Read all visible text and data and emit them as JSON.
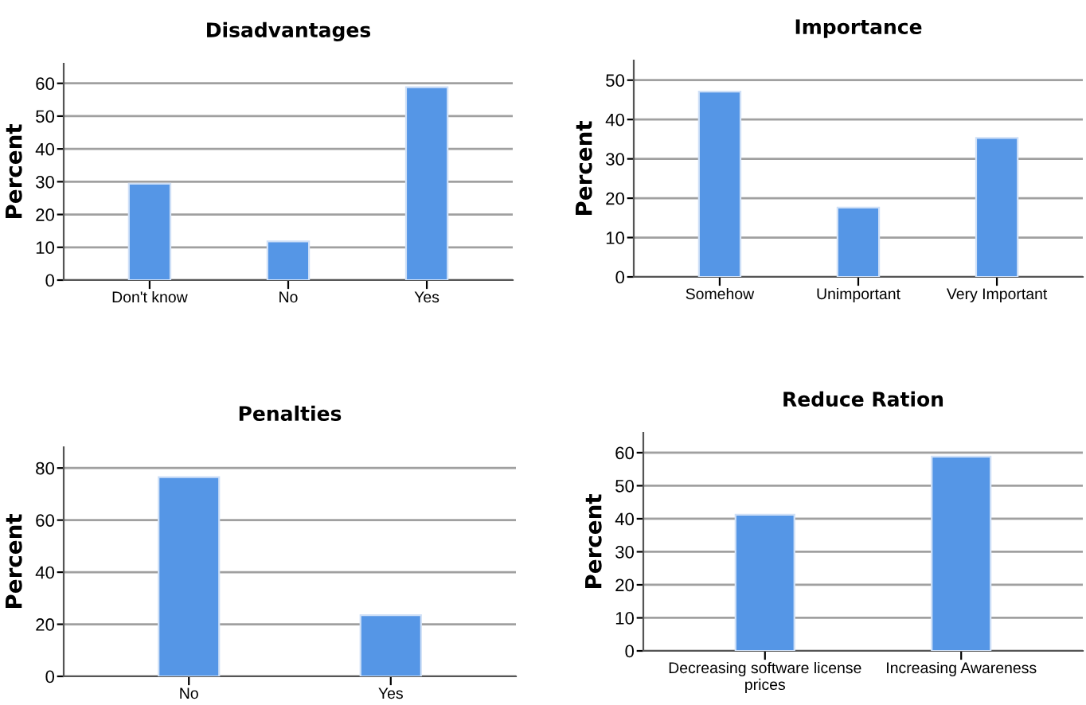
{
  "chart_data": [
    {
      "type": "bar",
      "title": "Disadvantages",
      "ylabel": "Percent",
      "categories": [
        "Don't know",
        "No",
        "Yes"
      ],
      "values": [
        29.4,
        11.8,
        58.8
      ],
      "color": "#5596e6",
      "ylim": [
        0,
        66
      ],
      "yticks": [
        0,
        10,
        20,
        30,
        40,
        50,
        60
      ],
      "grid": "y"
    },
    {
      "type": "bar",
      "title": "Importance",
      "ylabel": "Percent",
      "categories": [
        "Somehow",
        "Unimportant",
        "Very Important"
      ],
      "values": [
        47.1,
        17.6,
        35.3
      ],
      "color": "#5596e6",
      "ylim": [
        0,
        55
      ],
      "yticks": [
        0,
        10,
        20,
        30,
        40,
        50
      ],
      "grid": "y"
    },
    {
      "type": "bar",
      "title": "Penalties",
      "ylabel": "Percent",
      "categories": [
        "No",
        "Yes"
      ],
      "values": [
        76.5,
        23.5
      ],
      "color": "#5596e6",
      "ylim": [
        0,
        88
      ],
      "yticks": [
        0,
        20,
        40,
        60,
        80
      ],
      "grid": "y"
    },
    {
      "type": "bar",
      "title": "Reduce Ration",
      "ylabel": "Percent",
      "categories": [
        "Decreasing software license\nprices",
        "Increasing Awareness"
      ],
      "values": [
        41.2,
        58.8
      ],
      "color": "#5596e6",
      "ylim": [
        0,
        66
      ],
      "yticks": [
        0,
        10,
        20,
        30,
        40,
        50,
        60
      ],
      "grid": "y"
    }
  ]
}
